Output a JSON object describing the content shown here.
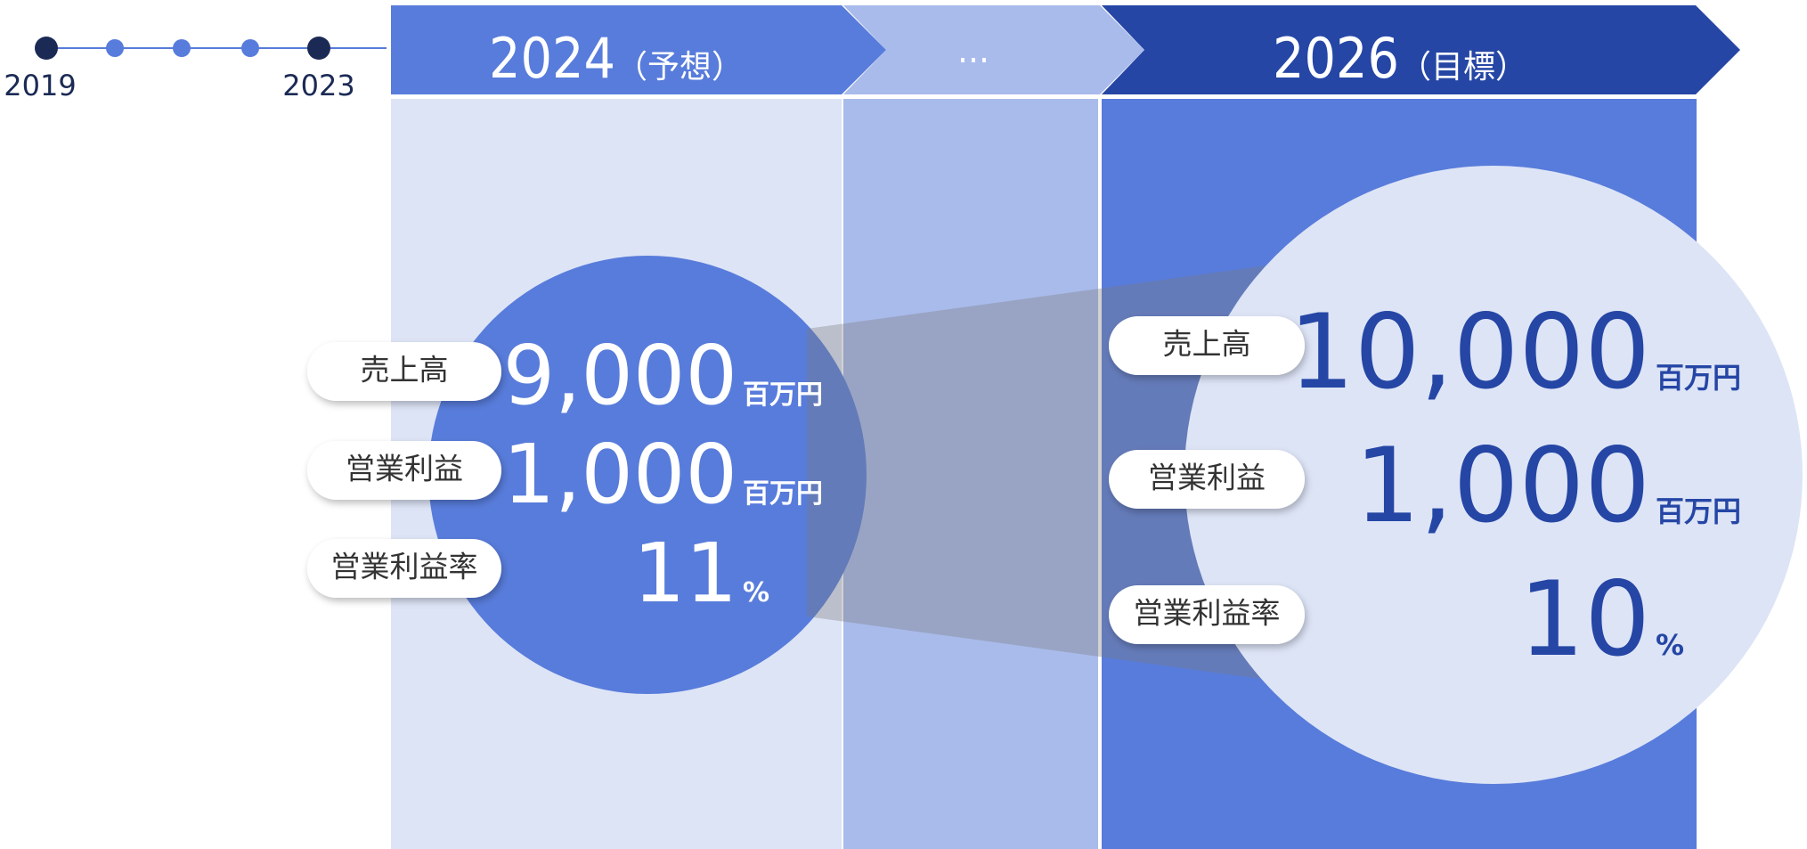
{
  "timeline": {
    "labels": [
      "2019",
      "2023"
    ]
  },
  "columns": [
    {
      "header": "2024",
      "note": "（予想）"
    },
    {
      "header": "…"
    },
    {
      "header": "2026",
      "note": "（目標）"
    }
  ],
  "forecast": {
    "metrics": [
      {
        "label": "売上高",
        "value": "9,000",
        "unit": "百万円"
      },
      {
        "label": "営業利益",
        "value": "1,000",
        "unit": "百万円"
      },
      {
        "label": "営業利益率",
        "value": "11",
        "unit": "%"
      }
    ]
  },
  "target": {
    "metrics": [
      {
        "label": "売上高",
        "value": "10,000",
        "unit": "百万円"
      },
      {
        "label": "営業利益",
        "value": "1,000",
        "unit": "百万円"
      },
      {
        "label": "営業利益率",
        "value": "10",
        "unit": "%"
      }
    ]
  }
}
